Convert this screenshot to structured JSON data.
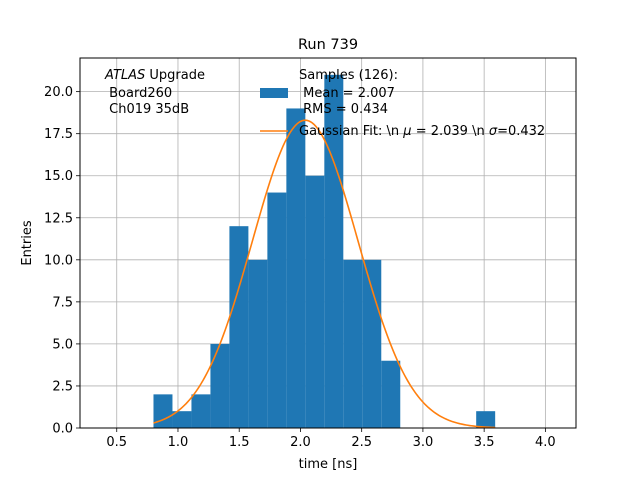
{
  "chart_data": {
    "type": "bar",
    "title": "Run 739",
    "xlabel": "time [ns]",
    "ylabel": "Entries",
    "xlim": [
      0.2,
      4.25
    ],
    "ylim": [
      0,
      22
    ],
    "grid": true,
    "xticks": [
      0.5,
      1.0,
      1.5,
      2.0,
      2.5,
      3.0,
      3.5,
      4.0
    ],
    "xtick_labels": [
      "0.5",
      "1.0",
      "1.5",
      "2.0",
      "2.5",
      "3.0",
      "3.5",
      "4.0"
    ],
    "yticks": [
      0,
      2.5,
      5,
      7.5,
      10,
      12.5,
      15,
      17.5,
      20
    ],
    "ytick_labels": [
      "0.0",
      "2.5",
      "5.0",
      "7.5",
      "10.0",
      "12.5",
      "15.0",
      "17.5",
      "20.0"
    ],
    "histogram": {
      "color": "#1f77b4",
      "bin_edges": [
        0.8,
        0.955,
        1.11,
        1.265,
        1.42,
        1.575,
        1.73,
        1.885,
        2.04,
        2.195,
        2.35,
        2.505,
        2.66,
        2.815,
        2.97,
        3.125,
        3.28,
        3.435,
        3.59
      ],
      "counts": [
        2,
        1,
        2,
        5,
        12,
        10,
        14,
        19,
        15,
        21,
        10,
        10,
        4,
        0,
        0,
        0,
        0,
        1
      ]
    },
    "fit": {
      "color": "#ff7f0e",
      "mu": 2.039,
      "sigma": 0.432,
      "amplitude": 18.3,
      "x_range": [
        0.8,
        3.59
      ]
    },
    "legend": {
      "placement": "top-center",
      "entries": [
        {
          "kind": "patch",
          "color": "#1f77b4",
          "lines": [
            "Samples (126):",
            " Mean = 2.007",
            " RMS = 0.434"
          ]
        },
        {
          "kind": "line",
          "color": "#ff7f0e",
          "text_prefix": "Gaussian Fit: \\n ",
          "mu_symbol": "μ",
          "mu_text": " = 2.039 \\n ",
          "sigma_symbol": "σ",
          "sigma_text": "=0.432"
        }
      ]
    },
    "annotation": {
      "atlas": "ATLAS",
      "upgrade": " Upgrade",
      "line2": " Board260",
      "line3": " Ch019 35dB"
    }
  }
}
